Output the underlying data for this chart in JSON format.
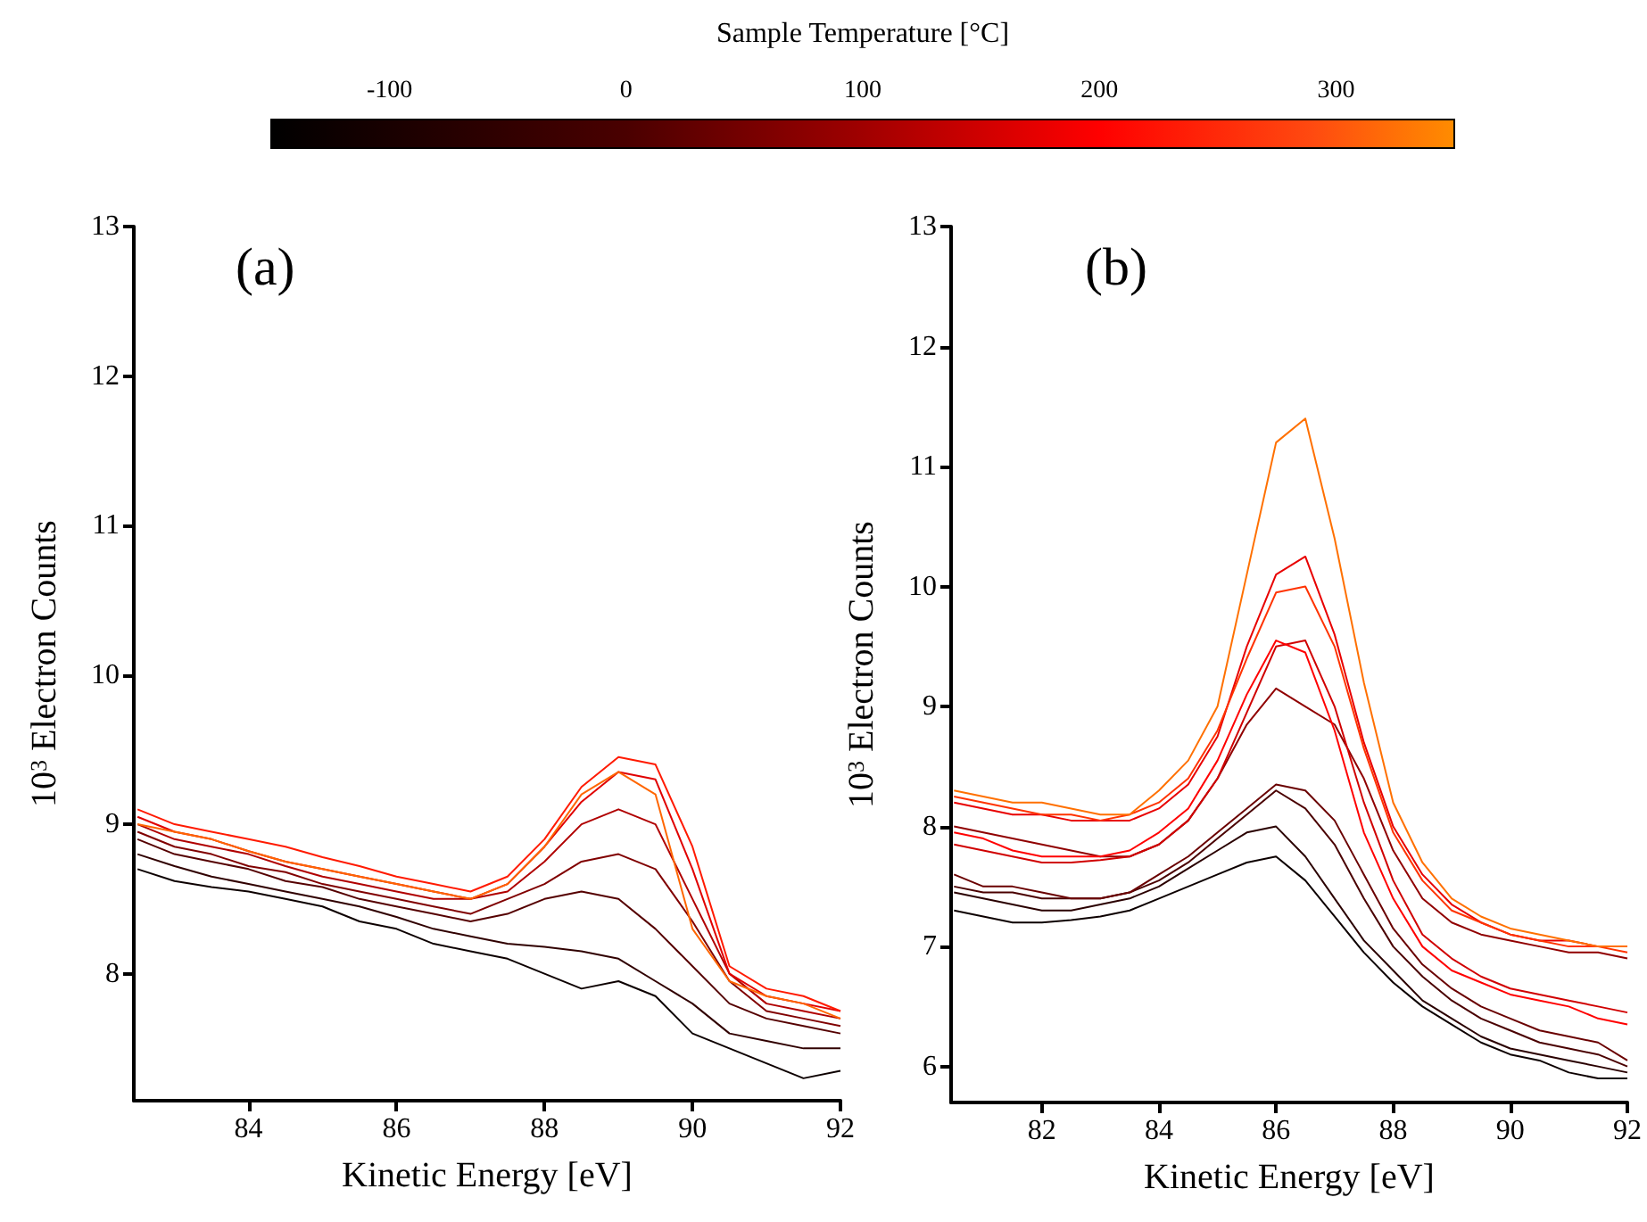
{
  "chart_data": [
    {
      "type": "line",
      "title": "(a)",
      "xlabel": "Kinetic Energy [eV]",
      "ylabel": "10$^{3}$ Electron Counts",
      "clabel": "Sample Temperature [°C]",
      "clim": [
        -150,
        350
      ],
      "cticks": [
        -100,
        0,
        100,
        200,
        300
      ],
      "x": [
        82.5,
        83,
        83.5,
        84,
        84.5,
        85,
        85.5,
        86,
        86.5,
        87,
        87.5,
        88,
        88.5,
        89,
        89.5,
        90,
        90.5,
        91,
        91.5,
        92
      ],
      "xlim": [
        82.45,
        92
      ],
      "xticks": [
        84,
        86,
        88,
        90,
        92
      ],
      "ylim": [
        7.15,
        13
      ],
      "yticks": [
        8,
        9,
        10,
        11,
        12,
        13
      ],
      "grid": false,
      "marker": "none",
      "line_style": "solid",
      "series": [
        {
          "color": "#0d0000",
          "values": [
            8.7,
            8.62,
            8.58,
            8.55,
            8.5,
            8.45,
            8.35,
            8.3,
            8.2,
            8.15,
            8.1,
            8.0,
            7.9,
            7.95,
            7.85,
            7.6,
            7.5,
            7.4,
            7.3,
            7.35
          ]
        },
        {
          "color": "#300000",
          "values": [
            8.8,
            8.72,
            8.65,
            8.6,
            8.55,
            8.5,
            8.45,
            8.38,
            8.3,
            8.25,
            8.2,
            8.18,
            8.15,
            8.1,
            7.95,
            7.8,
            7.6,
            7.55,
            7.5,
            7.5
          ]
        },
        {
          "color": "#550000",
          "values": [
            8.9,
            8.8,
            8.75,
            8.7,
            8.62,
            8.58,
            8.5,
            8.45,
            8.4,
            8.35,
            8.4,
            8.5,
            8.55,
            8.5,
            8.3,
            8.05,
            7.8,
            7.7,
            7.65,
            7.6
          ]
        },
        {
          "color": "#800000",
          "values": [
            8.95,
            8.85,
            8.8,
            8.72,
            8.68,
            8.6,
            8.55,
            8.5,
            8.45,
            8.4,
            8.5,
            8.6,
            8.75,
            8.8,
            8.7,
            8.35,
            7.95,
            7.75,
            7.7,
            7.65
          ]
        },
        {
          "color": "#b00000",
          "values": [
            9.0,
            8.9,
            8.85,
            8.8,
            8.72,
            8.65,
            8.6,
            8.55,
            8.5,
            8.5,
            8.55,
            8.75,
            9.0,
            9.1,
            9.0,
            8.5,
            8.0,
            7.8,
            7.75,
            7.7
          ]
        },
        {
          "color": "#e00000",
          "values": [
            9.05,
            8.95,
            8.9,
            8.82,
            8.75,
            8.7,
            8.65,
            8.6,
            8.55,
            8.5,
            8.6,
            8.85,
            9.15,
            9.35,
            9.3,
            8.7,
            8.0,
            7.85,
            7.8,
            7.75
          ]
        },
        {
          "color": "#ff1a00",
          "values": [
            9.1,
            9.0,
            8.95,
            8.9,
            8.85,
            8.78,
            8.72,
            8.65,
            8.6,
            8.55,
            8.65,
            8.9,
            9.25,
            9.45,
            9.4,
            8.85,
            8.05,
            7.9,
            7.85,
            7.75
          ]
        },
        {
          "color": "#ff6600",
          "values": [
            9.0,
            8.95,
            8.9,
            8.82,
            8.75,
            8.7,
            8.65,
            8.6,
            8.55,
            8.5,
            8.6,
            8.85,
            9.2,
            9.35,
            9.2,
            8.3,
            7.95,
            7.85,
            7.8,
            7.7
          ]
        }
      ]
    },
    {
      "type": "line",
      "title": "(b)",
      "xlabel": "Kinetic Energy [eV]",
      "ylabel": "10$^{3}$ Electron Counts",
      "x": [
        80.5,
        81,
        81.5,
        82,
        82.5,
        83,
        83.5,
        84,
        84.5,
        85,
        85.5,
        86,
        86.5,
        87,
        87.5,
        88,
        88.5,
        89,
        89.5,
        90,
        90.5,
        91,
        91.5,
        92
      ],
      "xlim": [
        80.45,
        92
      ],
      "xticks": [
        82,
        84,
        86,
        88,
        90,
        92
      ],
      "ylim": [
        5.7,
        13
      ],
      "yticks": [
        6,
        7,
        8,
        9,
        10,
        11,
        12,
        13
      ],
      "grid": false,
      "marker": "none",
      "line_style": "solid",
      "series": [
        {
          "color": "#0d0000",
          "values": [
            7.3,
            7.25,
            7.2,
            7.2,
            7.22,
            7.25,
            7.3,
            7.4,
            7.5,
            7.6,
            7.7,
            7.75,
            7.55,
            7.25,
            6.95,
            6.7,
            6.5,
            6.35,
            6.2,
            6.1,
            6.05,
            5.95,
            5.9,
            5.9
          ]
        },
        {
          "color": "#2a0000",
          "values": [
            7.45,
            7.4,
            7.35,
            7.3,
            7.3,
            7.35,
            7.4,
            7.5,
            7.65,
            7.8,
            7.95,
            8.0,
            7.75,
            7.4,
            7.05,
            6.8,
            6.55,
            6.4,
            6.25,
            6.15,
            6.1,
            6.05,
            6.0,
            5.95
          ]
        },
        {
          "color": "#4a0000",
          "values": [
            7.5,
            7.45,
            7.45,
            7.4,
            7.4,
            7.4,
            7.45,
            7.55,
            7.7,
            7.9,
            8.1,
            8.3,
            8.15,
            7.85,
            7.4,
            7.0,
            6.75,
            6.55,
            6.4,
            6.3,
            6.2,
            6.15,
            6.1,
            6.0
          ]
        },
        {
          "color": "#6a0000",
          "values": [
            7.6,
            7.5,
            7.5,
            7.45,
            7.4,
            7.4,
            7.45,
            7.6,
            7.75,
            7.95,
            8.15,
            8.35,
            8.3,
            8.05,
            7.6,
            7.15,
            6.85,
            6.65,
            6.5,
            6.4,
            6.3,
            6.25,
            6.2,
            6.05
          ]
        },
        {
          "color": "#900000",
          "values": [
            8.0,
            7.95,
            7.9,
            7.85,
            7.8,
            7.75,
            7.75,
            7.85,
            8.05,
            8.4,
            8.85,
            9.15,
            9.0,
            8.85,
            8.4,
            7.8,
            7.4,
            7.2,
            7.1,
            7.05,
            7.0,
            6.95,
            6.95,
            6.9
          ]
        },
        {
          "color": "#d00000",
          "values": [
            7.85,
            7.8,
            7.75,
            7.7,
            7.7,
            7.72,
            7.75,
            7.85,
            8.05,
            8.4,
            8.95,
            9.5,
            9.55,
            9.0,
            8.2,
            7.55,
            7.1,
            6.9,
            6.75,
            6.65,
            6.6,
            6.55,
            6.5,
            6.45
          ]
        },
        {
          "color": "#ff0000",
          "values": [
            7.95,
            7.9,
            7.8,
            7.75,
            7.75,
            7.75,
            7.8,
            7.95,
            8.15,
            8.55,
            9.1,
            9.55,
            9.45,
            8.8,
            7.95,
            7.4,
            7.0,
            6.8,
            6.7,
            6.6,
            6.55,
            6.5,
            6.4,
            6.35
          ]
        },
        {
          "color": "#e80000",
          "values": [
            8.2,
            8.15,
            8.1,
            8.1,
            8.05,
            8.05,
            8.05,
            8.15,
            8.35,
            8.75,
            9.5,
            10.1,
            10.25,
            9.6,
            8.7,
            8.0,
            7.6,
            7.35,
            7.2,
            7.1,
            7.05,
            7.05,
            7.0,
            7.0
          ]
        },
        {
          "color": "#ff3300",
          "values": [
            8.25,
            8.2,
            8.15,
            8.1,
            8.1,
            8.05,
            8.1,
            8.2,
            8.4,
            8.8,
            9.4,
            9.95,
            10.0,
            9.5,
            8.65,
            7.95,
            7.55,
            7.3,
            7.2,
            7.1,
            7.05,
            7.0,
            7.0,
            6.95
          ]
        },
        {
          "color": "#ff7000",
          "values": [
            8.3,
            8.25,
            8.2,
            8.2,
            8.15,
            8.1,
            8.1,
            8.3,
            8.55,
            9.0,
            10.1,
            11.2,
            11.4,
            10.4,
            9.2,
            8.2,
            7.7,
            7.4,
            7.25,
            7.15,
            7.1,
            7.05,
            7.0,
            7.0
          ]
        }
      ]
    }
  ]
}
